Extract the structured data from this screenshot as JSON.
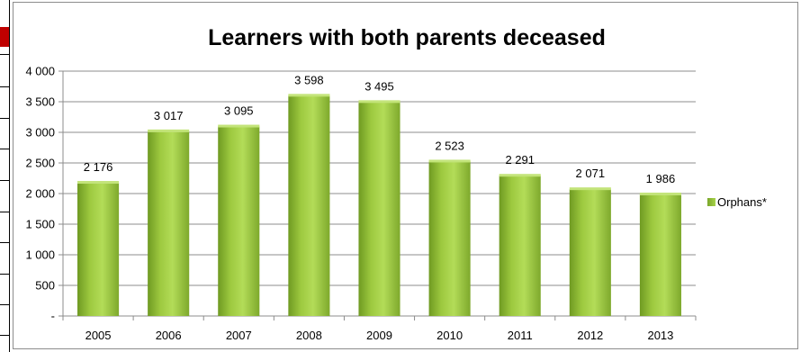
{
  "chart_data": {
    "type": "bar",
    "title": "Learners with both parents deceased",
    "categories": [
      "2005",
      "2006",
      "2007",
      "2008",
      "2009",
      "2010",
      "2011",
      "2012",
      "2013"
    ],
    "series": [
      {
        "name": "Orphans*",
        "values": [
          2176,
          3017,
          3095,
          3598,
          3495,
          2523,
          2291,
          2071,
          1986
        ],
        "value_labels": [
          "2 176",
          "3 017",
          "3 095",
          "3 598",
          "3 495",
          "2 523",
          "2 291",
          "2 071",
          "1 986"
        ],
        "color": "#9bc63b"
      }
    ],
    "ylim": [
      0,
      4000
    ],
    "y_ticks": [
      0,
      500,
      1000,
      1500,
      2000,
      2500,
      3000,
      3500,
      4000
    ],
    "y_tick_labels": [
      "-",
      "500",
      "1 000",
      "1 500",
      "2 000",
      "2 500",
      "3 000",
      "3 500",
      "4 000"
    ],
    "xlabel": "",
    "ylabel": "",
    "grid": true,
    "legend_position": "right"
  }
}
